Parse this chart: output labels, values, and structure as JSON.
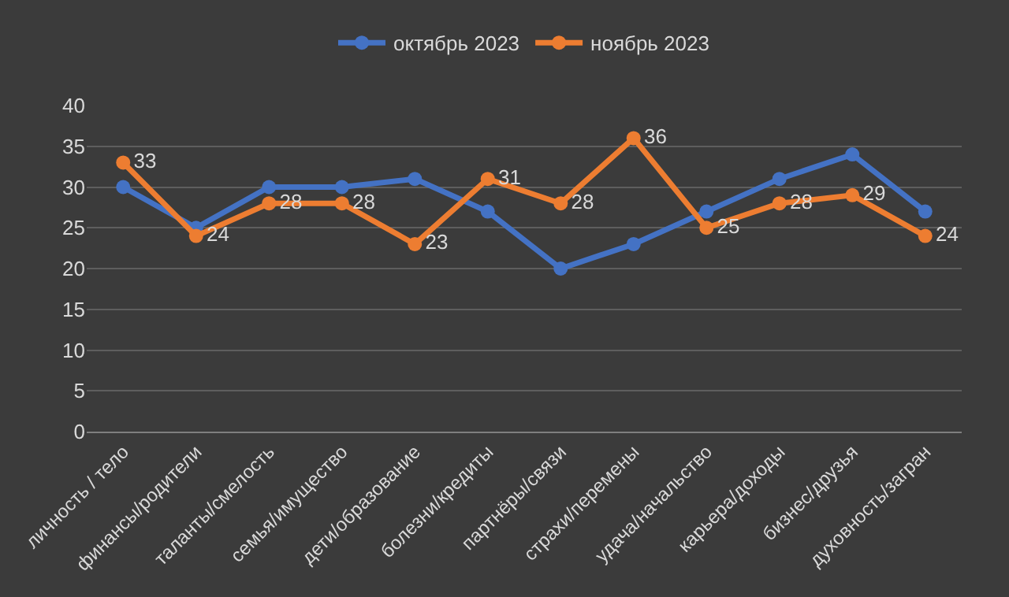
{
  "chart_data": {
    "type": "line",
    "categories": [
      "личность / тело",
      "финансы/родители",
      "таланты/смелость",
      "семья/имущество",
      "дети/образование",
      "болезни/кредиты",
      "партнёры/связи",
      "страхи/перемены",
      "удача/начальство",
      "карьера/доходы",
      "бизнес/друзья",
      "духовность/загран"
    ],
    "series": [
      {
        "name": "октябрь 2023",
        "color": "#4472c4",
        "values": [
          30,
          25,
          30,
          30,
          31,
          27,
          20,
          23,
          27,
          31,
          34,
          27
        ]
      },
      {
        "name": "ноябрь 2023",
        "color": "#ed7d31",
        "values": [
          33,
          24,
          28,
          28,
          23,
          31,
          28,
          36,
          25,
          28,
          29,
          24
        ],
        "value_labels": [
          "33",
          "24",
          "28",
          "28",
          "23",
          "31",
          "28",
          "36",
          "25",
          "28",
          "29",
          "24"
        ]
      }
    ],
    "ylim": [
      0,
      40
    ],
    "yticks": [
      0,
      5,
      10,
      15,
      20,
      25,
      30,
      35,
      40
    ],
    "grid": "y",
    "legend": "top",
    "marker": "circle",
    "line_style": "solid"
  }
}
